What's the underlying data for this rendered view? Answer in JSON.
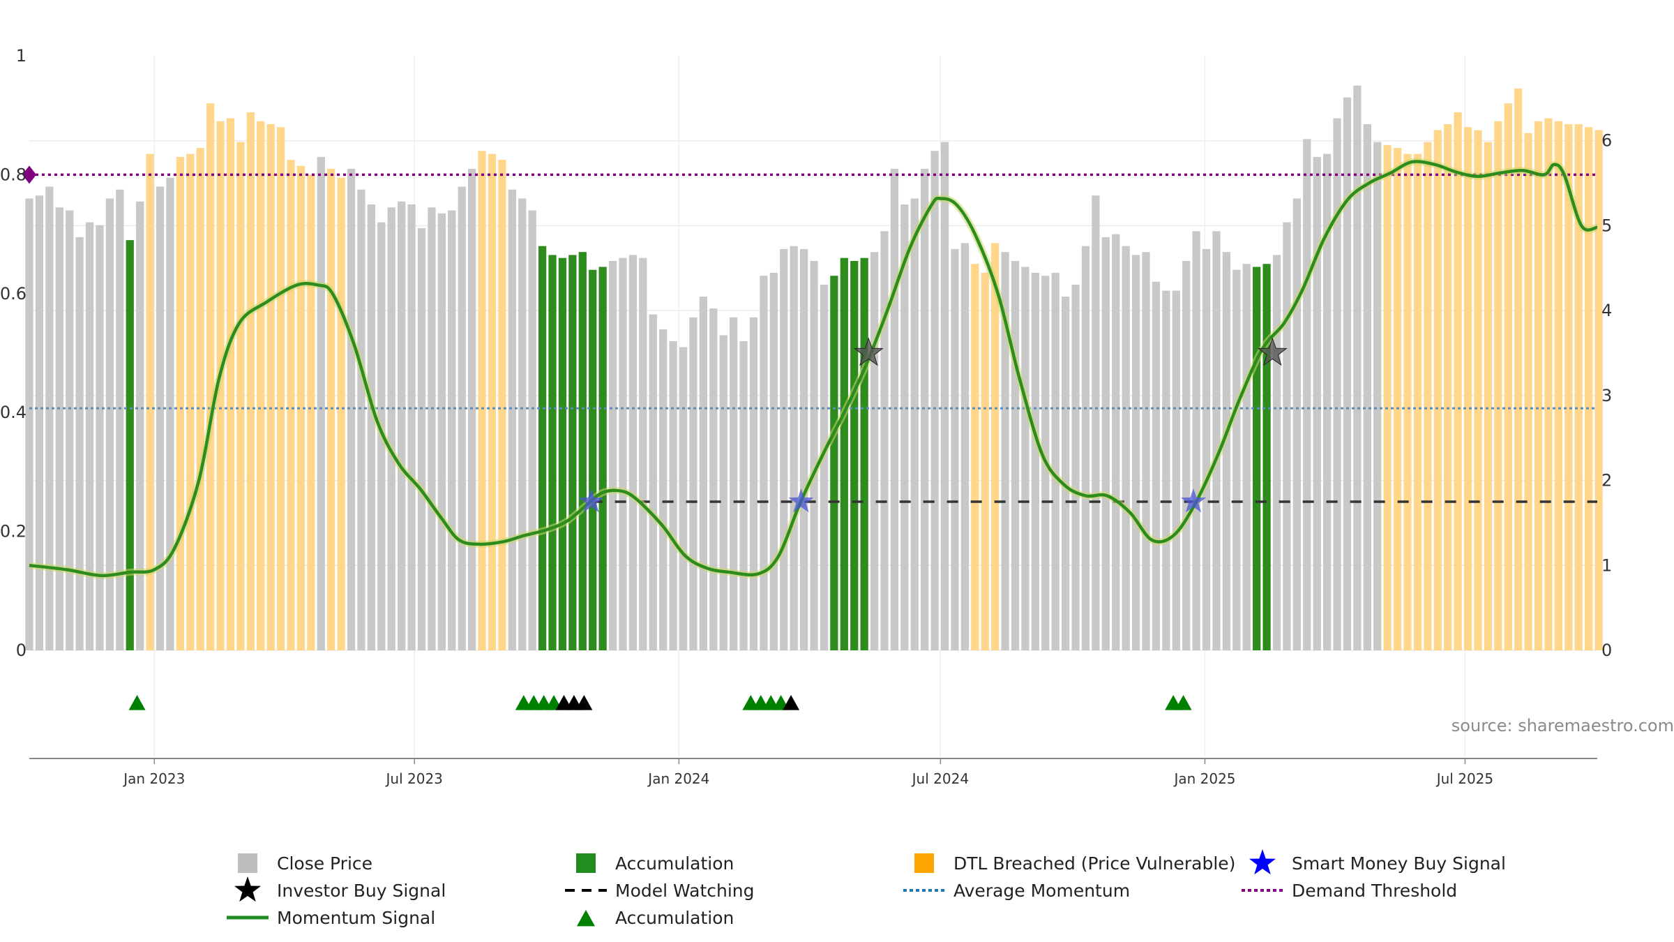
{
  "chart_data": {
    "type": "bar",
    "source_note": "source: sharemaestro.com",
    "left_axis": {
      "ticks": [
        "0",
        "0.2",
        "0.4",
        "0.6",
        "0.8",
        "1"
      ],
      "ylim": [
        0,
        1
      ]
    },
    "right_axis": {
      "ticks": [
        "0",
        "1",
        "2",
        "3",
        "4",
        "5",
        "6"
      ],
      "ylim": [
        0,
        7
      ]
    },
    "x_axis": {
      "ticks": [
        "Jan 2023",
        "Jul 2023",
        "Jan 2024",
        "Jul 2024",
        "Jan 2025",
        "Jul 2025"
      ],
      "range": [
        "2022-10-06",
        "2025-10-01"
      ]
    },
    "weeks": {
      "start": "2022-10-06",
      "close": [
        0.76,
        0.765,
        0.78,
        0.745,
        0.74,
        0.695,
        0.72,
        0.715,
        0.76,
        0.775,
        0.69,
        0.755,
        0.835,
        0.78,
        0.795,
        0.83,
        0.835,
        0.845,
        0.92,
        0.89,
        0.895,
        0.855,
        0.905,
        0.89,
        0.885,
        0.88,
        0.825,
        0.815,
        0.8,
        0.83,
        0.81,
        0.795,
        0.81,
        0.775,
        0.75,
        0.72,
        0.745,
        0.755,
        0.75,
        0.71,
        0.745,
        0.735,
        0.74,
        0.78,
        0.81,
        0.84,
        0.835,
        0.825,
        0.775,
        0.76,
        0.74,
        0.68,
        0.665,
        0.66,
        0.665,
        0.67,
        0.64,
        0.645,
        0.655,
        0.66,
        0.665,
        0.66,
        0.565,
        0.54,
        0.52,
        0.51,
        0.56,
        0.595,
        0.575,
        0.53,
        0.56,
        0.52,
        0.56,
        0.63,
        0.635,
        0.675,
        0.68,
        0.675,
        0.655,
        0.615,
        0.63,
        0.66,
        0.655,
        0.66,
        0.67,
        0.705,
        0.81,
        0.75,
        0.76,
        0.81,
        0.84,
        0.855,
        0.675,
        0.685,
        0.65,
        0.635,
        0.685,
        0.67,
        0.655,
        0.645,
        0.635,
        0.63,
        0.635,
        0.595,
        0.615,
        0.68,
        0.765,
        0.695,
        0.7,
        0.68,
        0.665,
        0.67,
        0.62,
        0.605,
        0.605,
        0.655,
        0.705,
        0.675,
        0.705,
        0.67,
        0.64,
        0.65,
        0.645,
        0.65,
        0.665,
        0.72,
        0.76,
        0.86,
        0.83,
        0.835,
        0.895,
        0.93,
        0.95,
        0.885,
        0.855,
        0.85,
        0.845,
        0.835,
        0.835,
        0.855,
        0.875,
        0.885,
        0.905,
        0.88,
        0.875,
        0.855,
        0.89,
        0.92,
        0.945,
        0.87,
        0.89,
        0.895,
        0.89,
        0.885,
        0.885,
        0.88,
        0.875
      ],
      "state": "GGGGGGGGGGAGYGGYYYYYYYYYYYYYYGYYGGGGGGGGGGGGGYYYGGGAAAAAAAGGGGGGGGGGGGGGGGGGGGGGAAAAGGGGGGGGGGYYYGGGGGGGGGGGGGGGGGGGGGGGGGAAGGGGGGGGGGGYYYYYYYYYYYYYYYYYYYYYYYYYYYYYYYYYYYYYYYYYYYYYY"
    },
    "series": [
      {
        "name": "Close Price",
        "axis": "left",
        "color": "#bdbdbd"
      },
      {
        "name": "Accumulation",
        "axis": "left",
        "color": "#228b22"
      },
      {
        "name": "DTL Breached (Price Vulnerable)",
        "axis": "left",
        "color": "#ffd080"
      },
      {
        "name": "Momentum Signal",
        "axis": "right",
        "color": "#2e8b1e",
        "points": [
          [
            "2022-10-06",
            1.0
          ],
          [
            "2022-11-01",
            0.95
          ],
          [
            "2022-11-25",
            0.88
          ],
          [
            "2022-12-15",
            0.92
          ],
          [
            "2023-01-01",
            0.95
          ],
          [
            "2023-01-15",
            1.2
          ],
          [
            "2023-02-01",
            2.0
          ],
          [
            "2023-02-15",
            3.2
          ],
          [
            "2023-03-01",
            3.85
          ],
          [
            "2023-03-20",
            4.1
          ],
          [
            "2023-04-10",
            4.3
          ],
          [
            "2023-04-25",
            4.3
          ],
          [
            "2023-05-05",
            4.2
          ],
          [
            "2023-05-20",
            3.6
          ],
          [
            "2023-06-05",
            2.7
          ],
          [
            "2023-06-20",
            2.2
          ],
          [
            "2023-07-05",
            1.9
          ],
          [
            "2023-07-20",
            1.55
          ],
          [
            "2023-08-01",
            1.3
          ],
          [
            "2023-08-15",
            1.25
          ],
          [
            "2023-09-01",
            1.28
          ],
          [
            "2023-09-15",
            1.35
          ],
          [
            "2023-10-01",
            1.42
          ],
          [
            "2023-10-15",
            1.52
          ],
          [
            "2023-10-28",
            1.7
          ],
          [
            "2023-11-08",
            1.85
          ],
          [
            "2023-11-20",
            1.88
          ],
          [
            "2023-12-01",
            1.8
          ],
          [
            "2023-12-20",
            1.48
          ],
          [
            "2024-01-05",
            1.12
          ],
          [
            "2024-01-20",
            0.97
          ],
          [
            "2024-02-05",
            0.92
          ],
          [
            "2024-02-25",
            0.9
          ],
          [
            "2024-03-10",
            1.1
          ],
          [
            "2024-03-25",
            1.72
          ],
          [
            "2024-04-10",
            2.3
          ],
          [
            "2024-04-25",
            2.8
          ],
          [
            "2024-05-10",
            3.35
          ],
          [
            "2024-05-25",
            4.0
          ],
          [
            "2024-06-10",
            4.75
          ],
          [
            "2024-06-25",
            5.25
          ],
          [
            "2024-07-01",
            5.32
          ],
          [
            "2024-07-12",
            5.25
          ],
          [
            "2024-07-25",
            4.9
          ],
          [
            "2024-08-10",
            4.2
          ],
          [
            "2024-08-25",
            3.2
          ],
          [
            "2024-09-10",
            2.3
          ],
          [
            "2024-09-25",
            1.95
          ],
          [
            "2024-10-10",
            1.82
          ],
          [
            "2024-10-25",
            1.82
          ],
          [
            "2024-11-10",
            1.62
          ],
          [
            "2024-11-25",
            1.3
          ],
          [
            "2024-12-10",
            1.35
          ],
          [
            "2024-12-25",
            1.72
          ],
          [
            "2025-01-10",
            2.3
          ],
          [
            "2025-01-25",
            2.95
          ],
          [
            "2025-02-10",
            3.55
          ],
          [
            "2025-02-25",
            3.85
          ],
          [
            "2025-03-10",
            4.25
          ],
          [
            "2025-03-25",
            4.85
          ],
          [
            "2025-04-10",
            5.3
          ],
          [
            "2025-04-25",
            5.5
          ],
          [
            "2025-05-10",
            5.62
          ],
          [
            "2025-05-25",
            5.75
          ],
          [
            "2025-06-10",
            5.72
          ],
          [
            "2025-06-25",
            5.63
          ],
          [
            "2025-07-10",
            5.58
          ],
          [
            "2025-07-25",
            5.62
          ],
          [
            "2025-08-10",
            5.65
          ],
          [
            "2025-08-25",
            5.6
          ],
          [
            "2025-09-01",
            5.72
          ],
          [
            "2025-09-08",
            5.6
          ],
          [
            "2025-09-20",
            5.0
          ],
          [
            "2025-10-01",
            4.98
          ]
        ]
      },
      {
        "name": "Model Watching",
        "axis": "right",
        "value": 1.75,
        "from": "2023-11-01",
        "to": "2025-10-01",
        "color": "#000000"
      },
      {
        "name": "Average Momentum",
        "axis": "right",
        "value": 2.85,
        "color": "#1f77b4"
      },
      {
        "name": "Demand Threshold",
        "axis": "right",
        "value": 5.6,
        "color": "#800080"
      },
      {
        "name": "Investor Buy Signal",
        "axis": "right",
        "color": "#000000",
        "points": [
          [
            "2024-05-12",
            3.5
          ],
          [
            "2025-02-17",
            3.5
          ]
        ]
      },
      {
        "name": "Smart Money Buy Signal",
        "axis": "right",
        "color": "#0000ff",
        "points": [
          [
            "2023-11-01",
            1.75
          ],
          [
            "2024-03-26",
            1.75
          ],
          [
            "2024-12-24",
            1.75
          ]
        ]
      },
      {
        "name": "Accumulation",
        "axis": "signals",
        "color": "#008000",
        "green_dates": [
          "2022-12-20",
          "2023-09-15",
          "2023-09-22",
          "2023-09-29",
          "2023-10-06",
          "2024-02-20",
          "2024-02-27",
          "2024-03-05",
          "2024-03-12",
          "2024-12-10",
          "2024-12-17"
        ],
        "black_dates": [
          "2023-10-13",
          "2023-10-20",
          "2023-10-27",
          "2024-03-19"
        ]
      }
    ],
    "legend": [
      {
        "name": "Close Price",
        "color": "#bdbdbd",
        "kind": "square"
      },
      {
        "name": "Investor Buy Signal",
        "color": "#000000",
        "kind": "star"
      },
      {
        "name": "Momentum Signal",
        "color": "#228b22",
        "kind": "line"
      },
      {
        "name": "Accumulation",
        "color": "#228b22",
        "kind": "square"
      },
      {
        "name": "Model Watching",
        "color": "#000000",
        "kind": "dash"
      },
      {
        "name": "Accumulation",
        "color": "#008000",
        "kind": "triangle"
      },
      {
        "name": "DTL Breached (Price Vulnerable)",
        "color": "#ffa500",
        "kind": "square"
      },
      {
        "name": "Average Momentum",
        "color": "#1f77b4",
        "kind": "dot"
      },
      {
        "name": "Smart Money Buy Signal",
        "color": "#0000ff",
        "kind": "star"
      },
      {
        "name": "Demand Threshold",
        "color": "#800080",
        "kind": "dot"
      }
    ],
    "legend_position": "bottom",
    "grid": true
  }
}
